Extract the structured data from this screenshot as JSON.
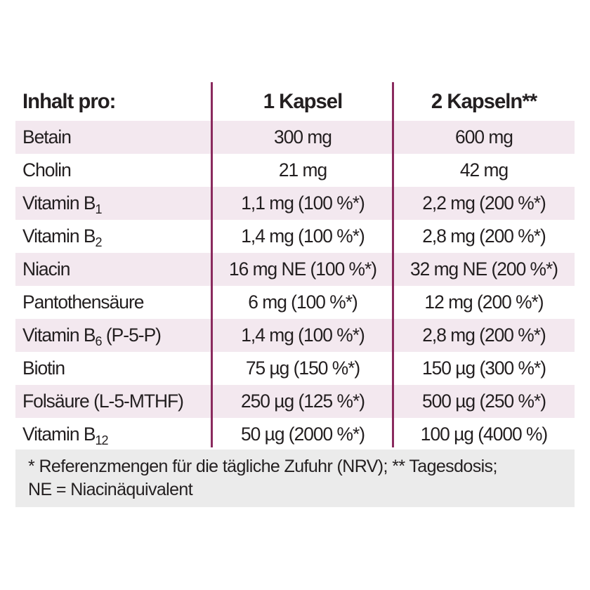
{
  "table": {
    "header": {
      "name": "Inhalt pro:",
      "one": "1 Kapsel",
      "two": "2 Kapseln**"
    },
    "rows": [
      {
        "name": "Betain",
        "sub": "",
        "suffix": "",
        "one": "300 mg",
        "two": "600 mg"
      },
      {
        "name": "Cholin",
        "sub": "",
        "suffix": "",
        "one": "21 mg",
        "two": "42 mg"
      },
      {
        "name": "Vitamin B",
        "sub": "1",
        "suffix": "",
        "one": "1,1 mg (100 %*)",
        "two": "2,2 mg (200 %*)"
      },
      {
        "name": "Vitamin B",
        "sub": "2",
        "suffix": "",
        "one": "1,4 mg (100 %*)",
        "two": "2,8 mg (200 %*)"
      },
      {
        "name": "Niacin",
        "sub": "",
        "suffix": "",
        "one": "16 mg NE (100 %*)",
        "two": "32 mg NE (200 %*)"
      },
      {
        "name": "Pantothensäure",
        "sub": "",
        "suffix": "",
        "one": "6 mg (100 %*)",
        "two": "12 mg (200 %*)"
      },
      {
        "name": "Vitamin B",
        "sub": "6",
        "suffix": " (P-5-P)",
        "one": "1,4 mg (100 %*)",
        "two": "2,8 mg (200 %*)"
      },
      {
        "name": "Biotin",
        "sub": "",
        "suffix": "",
        "one": "75 µg (150 %*)",
        "two": "150 µg (300 %*)"
      },
      {
        "name": "Folsäure (L-5-MTHF)",
        "sub": "",
        "suffix": "",
        "one": "250 µg (125 %*)",
        "two": "500 µg (250 %*)"
      },
      {
        "name": "Vitamin B",
        "sub": "12",
        "suffix": "",
        "one": "50 µg (2000 %*)",
        "two": "100 µg (4000 %)"
      }
    ]
  },
  "footnote": {
    "line1": "* Referenzmengen für die tägliche Zufuhr (NRV); ** Tagesdosis;",
    "line2": "NE = Niacinäquivalent"
  },
  "colors": {
    "divider": "#8a2a5e",
    "shaded_row": "#f3e8ef",
    "footnote_bg": "#ebebeb",
    "text": "#231f20"
  }
}
